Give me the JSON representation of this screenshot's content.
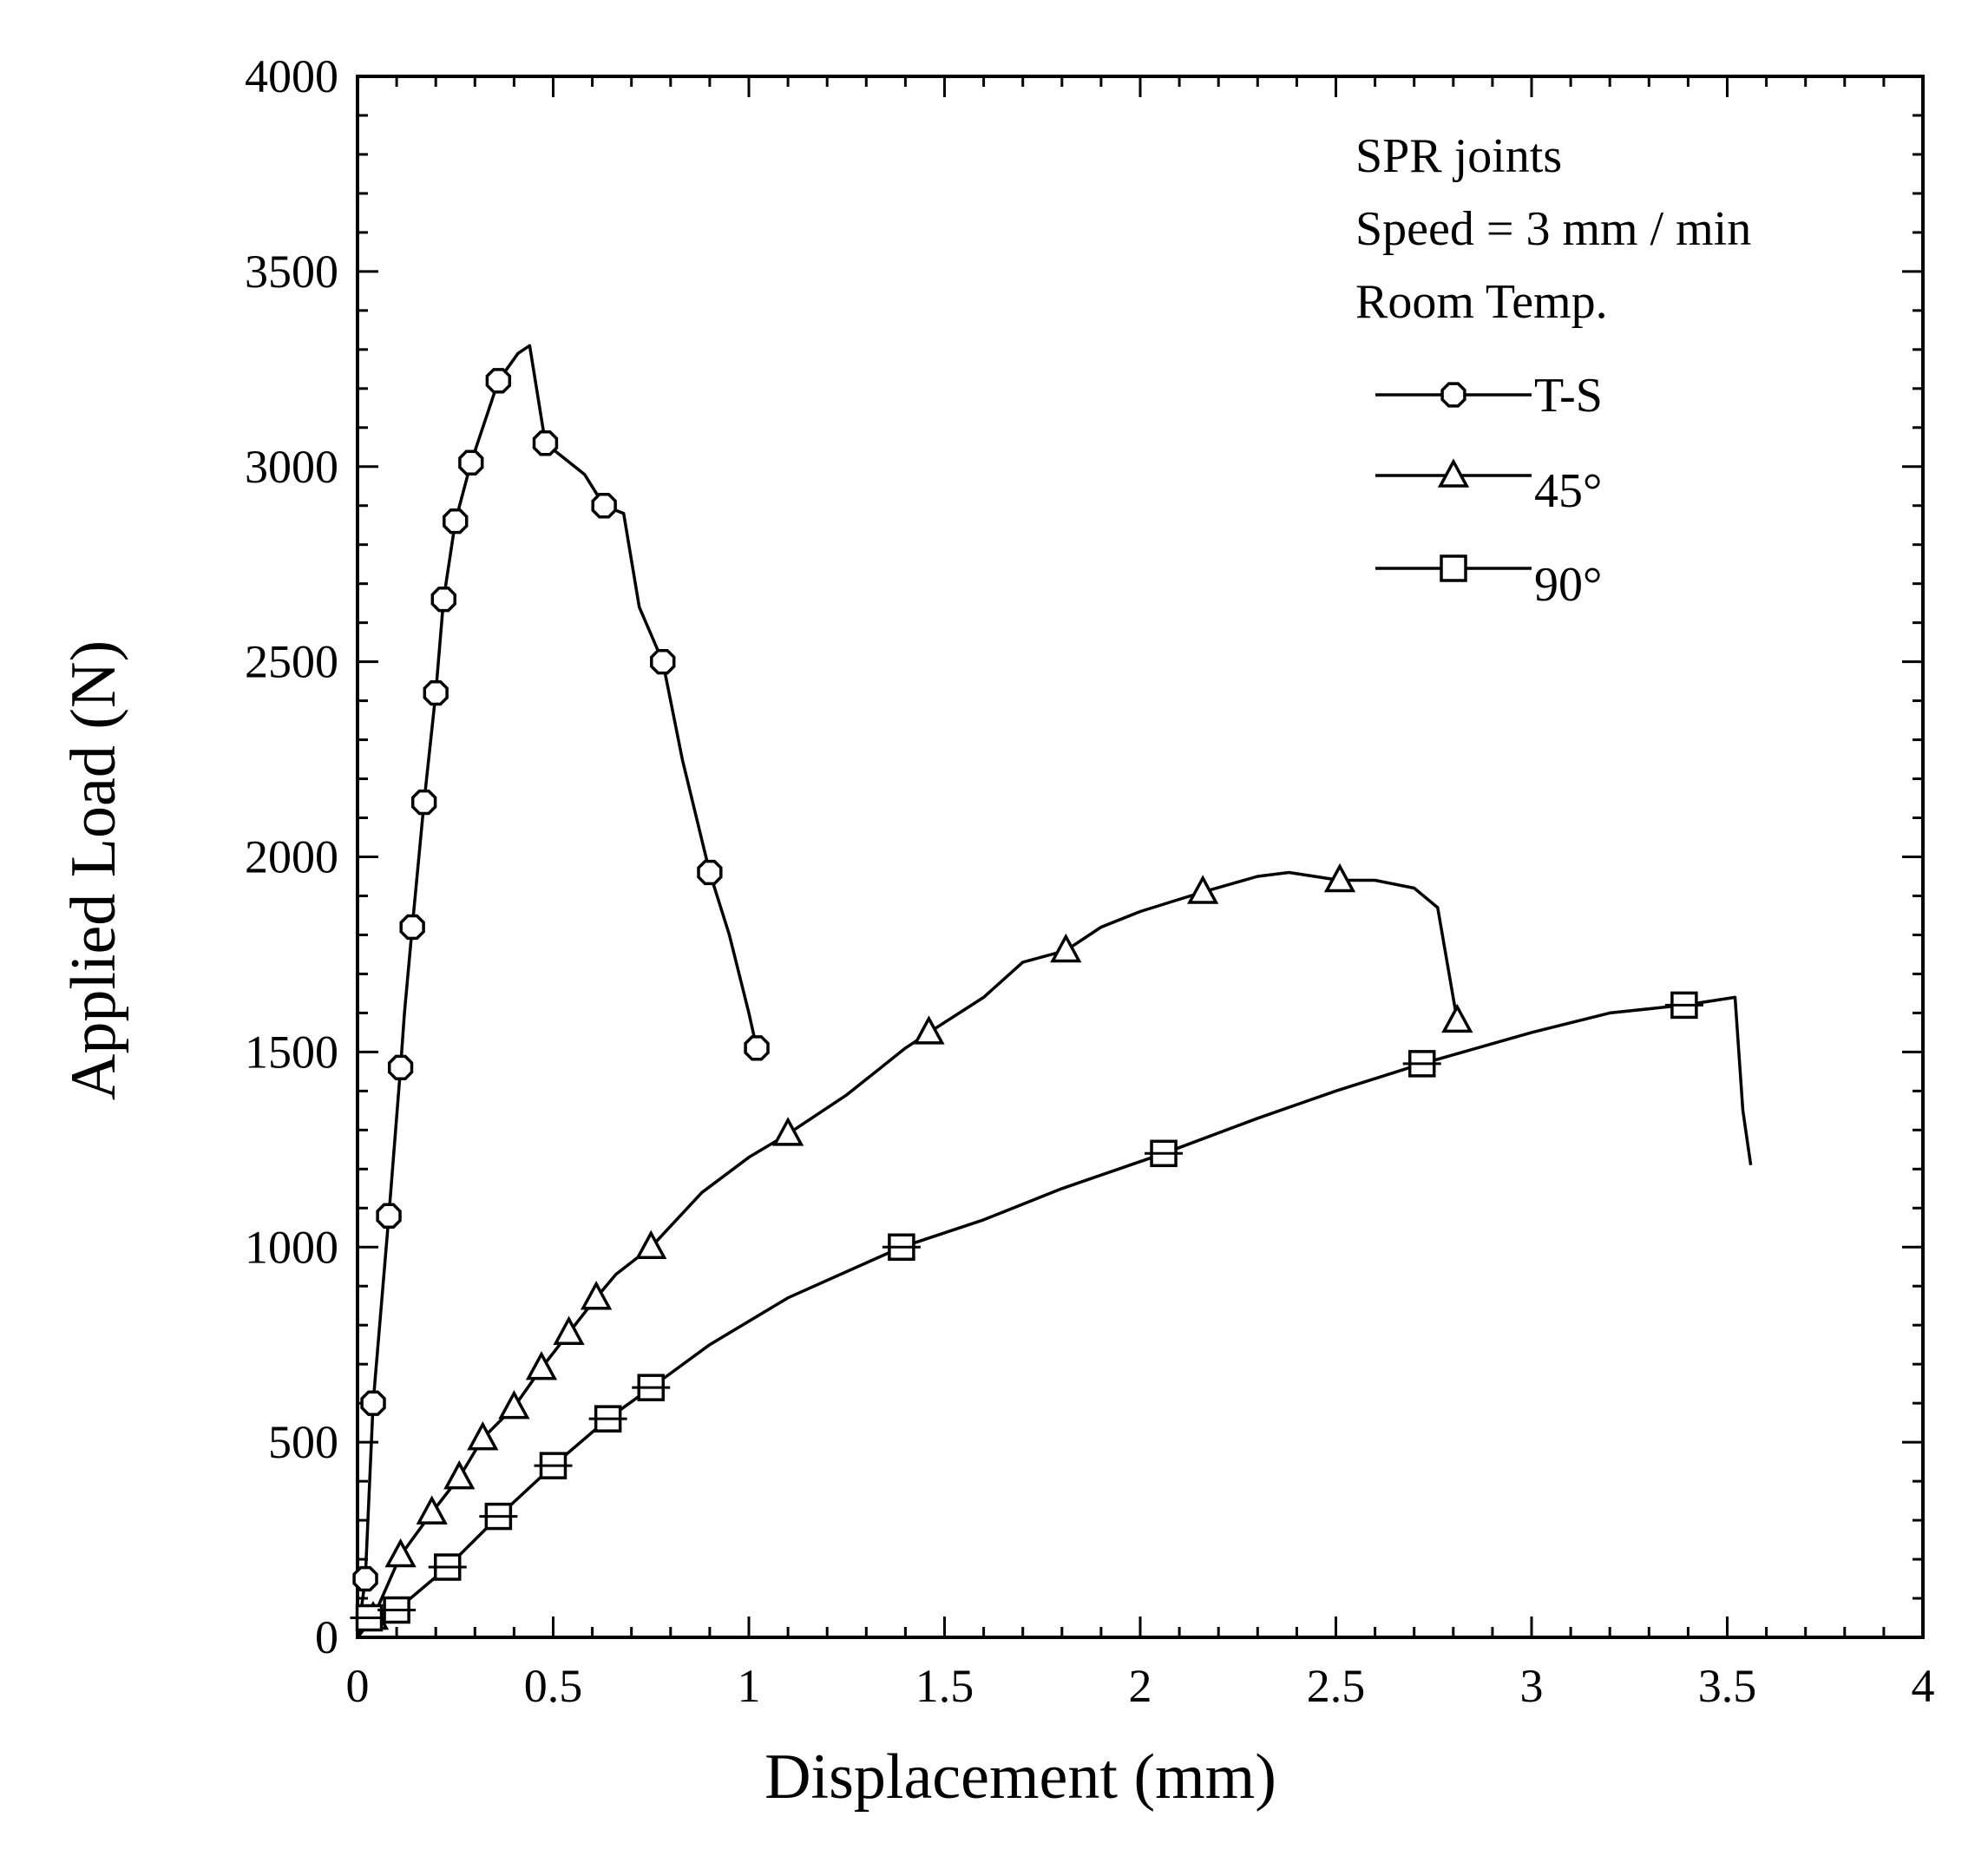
{
  "chart_data": {
    "type": "line",
    "title": "",
    "xlabel": "Displacement (mm)",
    "ylabel": "Applied Load (N)",
    "xlim": [
      0,
      4
    ],
    "ylim": [
      0,
      4000
    ],
    "xticks": [
      0,
      0.5,
      1,
      1.5,
      2,
      2.5,
      3,
      3.5,
      4
    ],
    "yticks": [
      0,
      500,
      1000,
      1500,
      2000,
      2500,
      3000,
      3500,
      4000
    ],
    "xtick_labels": [
      "0",
      "0.5",
      "1",
      "1.5",
      "2",
      "2.5",
      "3",
      "3.5",
      "4"
    ],
    "ytick_labels": [
      "0",
      "500",
      "1000",
      "1500",
      "2000",
      "2500",
      "3000",
      "3500",
      "4000"
    ],
    "legend_placement": "top-right",
    "annotations": [
      "SPR joints",
      "Speed = 3 mm / min",
      "Room Temp."
    ],
    "series": [
      {
        "name": "T-S",
        "marker": "circle",
        "x": [
          0,
          0.02,
          0.04,
          0.08,
          0.11,
          0.12,
          0.14,
          0.17,
          0.2,
          0.22,
          0.25,
          0.29,
          0.36,
          0.41,
          0.44,
          0.48,
          0.58,
          0.63,
          0.68,
          0.72,
          0.78,
          0.83,
          0.9,
          0.95,
          1.0,
          1.02
        ],
        "y": [
          0,
          150,
          600,
          1080,
          1460,
          1600,
          1820,
          2140,
          2420,
          2660,
          2860,
          3010,
          3220,
          3290,
          3310,
          3060,
          2980,
          2900,
          2880,
          2640,
          2500,
          2250,
          1960,
          1800,
          1600,
          1510
        ],
        "markers_x": [
          0.02,
          0.04,
          0.08,
          0.11,
          0.14,
          0.17,
          0.2,
          0.22,
          0.25,
          0.29,
          0.36,
          0.48,
          0.63,
          0.78,
          0.9,
          1.02
        ],
        "markers_y": [
          150,
          600,
          1080,
          1460,
          1820,
          2140,
          2420,
          2660,
          2860,
          3010,
          3220,
          3060,
          2900,
          2500,
          1960,
          1510
        ]
      },
      {
        "name": "45°",
        "marker": "triangle",
        "x": [
          0,
          0.04,
          0.11,
          0.19,
          0.26,
          0.32,
          0.4,
          0.47,
          0.54,
          0.61,
          0.66,
          0.75,
          0.88,
          1.0,
          1.1,
          1.25,
          1.4,
          1.46,
          1.6,
          1.7,
          1.81,
          1.9,
          2.0,
          2.16,
          2.3,
          2.38,
          2.51,
          2.6,
          2.7,
          2.76,
          2.81
        ],
        "y": [
          0,
          50,
          210,
          320,
          410,
          510,
          590,
          690,
          780,
          870,
          930,
          1000,
          1140,
          1230,
          1290,
          1390,
          1510,
          1550,
          1640,
          1730,
          1760,
          1820,
          1860,
          1910,
          1950,
          1960,
          1940,
          1940,
          1920,
          1870,
          1580
        ],
        "markers_x": [
          0.04,
          0.11,
          0.19,
          0.26,
          0.32,
          0.4,
          0.47,
          0.54,
          0.61,
          0.75,
          1.1,
          1.46,
          1.81,
          2.16,
          2.51,
          2.81
        ],
        "markers_y": [
          50,
          210,
          320,
          410,
          510,
          590,
          690,
          780,
          870,
          1000,
          1290,
          1550,
          1760,
          1910,
          1940,
          1580
        ]
      },
      {
        "name": "90°",
        "marker": "square",
        "x": [
          0,
          0.03,
          0.1,
          0.23,
          0.36,
          0.5,
          0.64,
          0.75,
          0.9,
          1.1,
          1.39,
          1.6,
          1.8,
          2.06,
          2.3,
          2.5,
          2.72,
          3.0,
          3.2,
          3.39,
          3.52,
          3.54,
          3.56
        ],
        "y": [
          0,
          50,
          70,
          180,
          310,
          440,
          560,
          640,
          750,
          870,
          1000,
          1070,
          1150,
          1240,
          1330,
          1400,
          1470,
          1550,
          1600,
          1620,
          1640,
          1350,
          1210
        ],
        "markers_x": [
          0.03,
          0.1,
          0.23,
          0.36,
          0.5,
          0.64,
          0.75,
          1.39,
          2.06,
          2.72,
          3.39
        ],
        "markers_y": [
          50,
          70,
          180,
          310,
          440,
          560,
          640,
          1000,
          1240,
          1470,
          1620
        ]
      }
    ]
  }
}
